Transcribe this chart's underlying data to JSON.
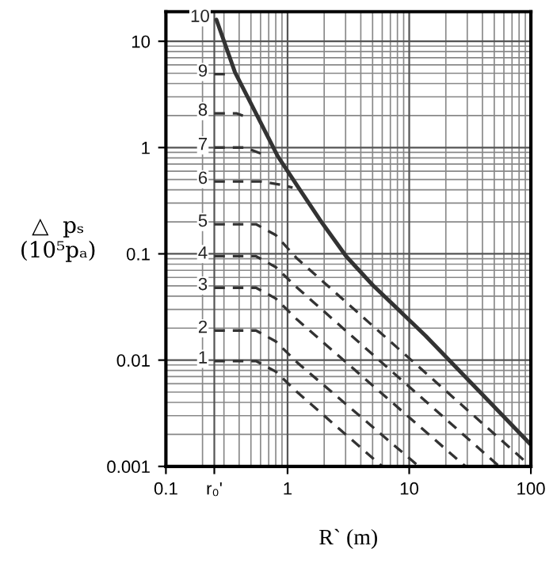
{
  "chart_data": {
    "type": "line",
    "xlabel": "R` (m)",
    "ylabel": "△  pₛ\n(10⁵pₐ)",
    "log": "xy",
    "grid": true,
    "line_style": "dashed",
    "marker": "none",
    "xlim": [
      0.1,
      100
    ],
    "ylim": [
      0.001,
      19
    ],
    "xticks": [
      0.1,
      {
        "value": 0.25,
        "label": "r₀'"
      },
      1,
      10,
      100
    ],
    "yticks": [
      0.001,
      0.01,
      0.1,
      1,
      10
    ],
    "series": [
      {
        "name": "1",
        "color": "#333333",
        "x": [
          0.25,
          0.55,
          0.8,
          1.2,
          6
        ],
        "values": [
          0.0098,
          0.0098,
          0.0078,
          0.005,
          0.001
        ]
      },
      {
        "name": "2",
        "color": "#333333",
        "x": [
          0.25,
          0.55,
          0.8,
          1.2,
          12
        ],
        "values": [
          0.019,
          0.019,
          0.015,
          0.0095,
          0.001
        ]
      },
      {
        "name": "3",
        "color": "#333333",
        "x": [
          0.25,
          0.55,
          0.8,
          1.2,
          29
        ],
        "values": [
          0.048,
          0.048,
          0.038,
          0.024,
          0.001
        ]
      },
      {
        "name": "4",
        "color": "#333333",
        "x": [
          0.25,
          0.55,
          0.8,
          1.2,
          55
        ],
        "values": [
          0.095,
          0.095,
          0.075,
          0.048,
          0.001
        ]
      },
      {
        "name": "5",
        "color": "#333333",
        "x": [
          0.25,
          0.55,
          0.8,
          1.2,
          100
        ],
        "values": [
          0.19,
          0.19,
          0.15,
          0.09,
          0.001
        ]
      },
      {
        "name": "6",
        "color": "#333333",
        "x": [
          0.25,
          0.6,
          0.85,
          1.1
        ],
        "values": [
          0.48,
          0.48,
          0.45,
          0.42
        ]
      },
      {
        "name": "7",
        "color": "#333333",
        "x": [
          0.25,
          0.45,
          0.65
        ],
        "values": [
          1.0,
          1.0,
          0.85
        ]
      },
      {
        "name": "8",
        "color": "#333333",
        "x": [
          0.25,
          0.38,
          0.48
        ],
        "values": [
          2.1,
          2.1,
          1.9
        ]
      },
      {
        "name": "9",
        "color": "#333333",
        "x": [
          0.25,
          0.31
        ],
        "values": [
          4.9,
          4.9
        ]
      },
      {
        "name": "10",
        "color": "#333333",
        "line_style": "solid",
        "x": [
          0.26,
          0.37,
          0.55,
          0.83,
          1.23,
          1.84,
          3.03,
          5.0,
          13.6,
          37,
          100
        ],
        "values": [
          16,
          5.1,
          2.1,
          0.83,
          0.42,
          0.21,
          0.095,
          0.051,
          0.017,
          0.0052,
          0.0016
        ]
      }
    ]
  }
}
